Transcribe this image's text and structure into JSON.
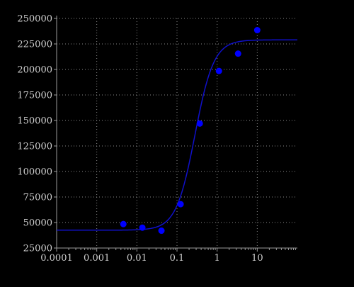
{
  "chart_data": {
    "type": "scatter",
    "xscale": "log",
    "xlim": [
      0.0001,
      100
    ],
    "ylim": [
      25000,
      250000
    ],
    "title": "",
    "xlabel": "",
    "ylabel": "",
    "grid": true,
    "xticks": [
      0.0001,
      0.001,
      0.01,
      0.1,
      1,
      10
    ],
    "xtick_labels": [
      "0.0001",
      "0.001",
      "0.01",
      "0.1",
      "1",
      "10"
    ],
    "yticks": [
      25000,
      50000,
      75000,
      100000,
      125000,
      150000,
      175000,
      200000,
      225000,
      250000
    ],
    "ytick_labels": [
      "25000",
      "50000",
      "75000",
      "100000",
      "125000",
      "150000",
      "175000",
      "200000",
      "225000",
      "250000"
    ],
    "series": [
      {
        "type": "scatter",
        "color": "#0000ff",
        "points": [
          {
            "x": 0.0046,
            "y": 48500
          },
          {
            "x": 0.0137,
            "y": 45000
          },
          {
            "x": 0.041,
            "y": 42000
          },
          {
            "x": 0.123,
            "y": 68000
          },
          {
            "x": 0.37,
            "y": 147000
          },
          {
            "x": 1.11,
            "y": 198500
          },
          {
            "x": 3.33,
            "y": 215500
          },
          {
            "x": 10,
            "y": 238500
          }
        ]
      },
      {
        "type": "line",
        "color": "#1010c8",
        "fit": "four-parameter-logistic",
        "bottom": 42500,
        "top": 229000,
        "ec50": 0.28,
        "hill": 1.85
      }
    ],
    "colors": {
      "background": "#000000",
      "axis": "#9a9a9a",
      "grid": "#8a8a8a",
      "tick_text": "#cfcfcf"
    }
  }
}
